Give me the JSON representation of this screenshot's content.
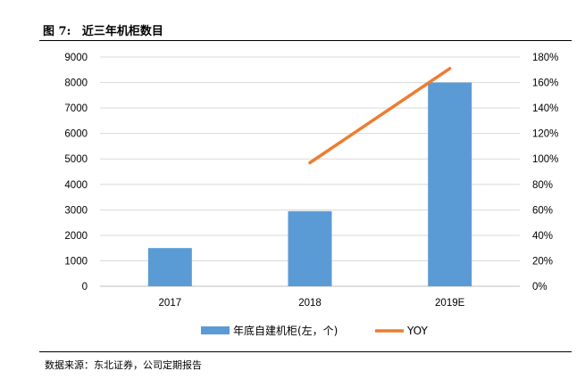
{
  "figure": {
    "label": "图 7:",
    "title": "近三年机柜数目",
    "source": "数据来源：东北证券，公司定期报告"
  },
  "chart_data": {
    "type": "bar+line",
    "categories": [
      "2017",
      "2018",
      "2019E"
    ],
    "series": [
      {
        "name": "年底自建机柜(左，个)",
        "type": "bar",
        "axis": "left",
        "values": [
          1500,
          2950,
          8000
        ],
        "color": "#5b9bd5"
      },
      {
        "name": "YOY",
        "type": "line",
        "axis": "right",
        "values": [
          null,
          0.97,
          1.71
        ],
        "color": "#ed7d31"
      }
    ],
    "left_axis": {
      "ylim": [
        0,
        9000
      ],
      "ticks": [
        "0",
        "1000",
        "2000",
        "3000",
        "4000",
        "5000",
        "6000",
        "7000",
        "8000",
        "9000"
      ]
    },
    "right_axis": {
      "ylim": [
        0,
        1.8
      ],
      "ticks": [
        "0%",
        "20%",
        "40%",
        "60%",
        "80%",
        "100%",
        "120%",
        "140%",
        "160%",
        "180%"
      ]
    },
    "grid": true,
    "legend": "bottom"
  }
}
